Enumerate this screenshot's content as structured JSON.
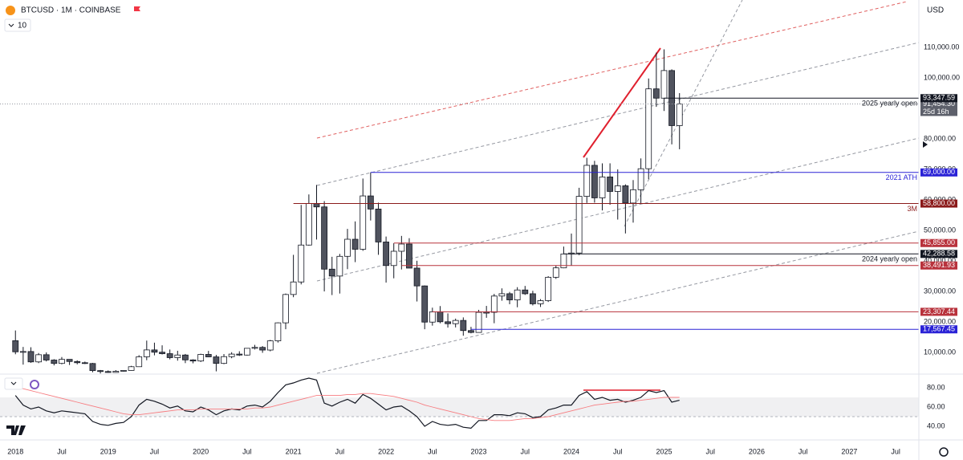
{
  "header": {
    "symbol": "BTCUSD · 1M · COINBASE",
    "interval_count": "10",
    "currency": "USD"
  },
  "chart_data": [
    {
      "type": "candlestick",
      "x": [
        "2018-01",
        "2018-02",
        "2018-03",
        "2018-04",
        "2018-05",
        "2018-06",
        "2018-07",
        "2018-08",
        "2018-09",
        "2018-10",
        "2018-11",
        "2018-12",
        "2019-01",
        "2019-02",
        "2019-03",
        "2019-04",
        "2019-05",
        "2019-06",
        "2019-07",
        "2019-08",
        "2019-09",
        "2019-10",
        "2019-11",
        "2019-12",
        "2020-01",
        "2020-02",
        "2020-03",
        "2020-04",
        "2020-05",
        "2020-06",
        "2020-07",
        "2020-08",
        "2020-09",
        "2020-10",
        "2020-11",
        "2020-12",
        "2021-01",
        "2021-02",
        "2021-03",
        "2021-04",
        "2021-05",
        "2021-06",
        "2021-07",
        "2021-08",
        "2021-09",
        "2021-10",
        "2021-11",
        "2021-12",
        "2022-01",
        "2022-02",
        "2022-03",
        "2022-04",
        "2022-05",
        "2022-06",
        "2022-07",
        "2022-08",
        "2022-09",
        "2022-10",
        "2022-11",
        "2022-12",
        "2023-01",
        "2023-02",
        "2023-03",
        "2023-04",
        "2023-05",
        "2023-06",
        "2023-07",
        "2023-08",
        "2023-09",
        "2023-10",
        "2023-11",
        "2023-12",
        "2024-01",
        "2024-02",
        "2024-03",
        "2024-04",
        "2024-05",
        "2024-06",
        "2024-07",
        "2024-08",
        "2024-09",
        "2024-10",
        "2024-11",
        "2024-12",
        "2025-01",
        "2025-02",
        "2025-03"
      ],
      "open": [
        13850,
        10200,
        10300,
        6900,
        9250,
        7500,
        6400,
        7730,
        7030,
        6630,
        6370,
        4040,
        3740,
        3440,
        3820,
        4100,
        5320,
        8560,
        10820,
        10080,
        9590,
        8290,
        9150,
        7550,
        7190,
        9350,
        8540,
        6410,
        8620,
        9450,
        9140,
        11350,
        11650,
        10780,
        13790,
        19700,
        28990,
        33100,
        45200,
        58800,
        57700,
        37300,
        35040,
        41500,
        47100,
        43820,
        61300,
        57000,
        46200,
        38480,
        43160,
        45530,
        37640,
        31800,
        19940,
        23300,
        20050,
        19420,
        20490,
        17170,
        16550,
        23140,
        23150,
        28480,
        29240,
        27220,
        30470,
        29230,
        25940,
        26970,
        34640,
        37720,
        42280,
        42580,
        61160,
        71330,
        60670,
        67520,
        62770,
        64620,
        58970,
        63330,
        70220,
        96400,
        93350,
        102400,
        84350
      ],
      "high": [
        17200,
        11800,
        11700,
        9800,
        10000,
        7780,
        8500,
        7760,
        7400,
        7000,
        6560,
        4240,
        4100,
        4200,
        4120,
        5600,
        9100,
        13880,
        13200,
        12330,
        10950,
        10540,
        9500,
        7750,
        9580,
        10500,
        9200,
        9470,
        10070,
        10380,
        11450,
        12480,
        12080,
        14100,
        19860,
        29300,
        41990,
        58350,
        61790,
        64900,
        59600,
        41350,
        42300,
        50500,
        52950,
        67000,
        69000,
        59100,
        47990,
        45800,
        48200,
        47450,
        40050,
        31950,
        24670,
        25200,
        22800,
        21080,
        21480,
        18390,
        23960,
        25250,
        29200,
        31000,
        29830,
        31390,
        31800,
        30200,
        27480,
        35000,
        38450,
        44700,
        48970,
        63970,
        73800,
        72800,
        71980,
        71990,
        70000,
        65100,
        66500,
        73600,
        99800,
        108300,
        109350,
        102800,
        95000
      ],
      "low": [
        9400,
        6000,
        6600,
        6500,
        7050,
        5750,
        6100,
        5880,
        6100,
        6200,
        3500,
        3100,
        3350,
        3380,
        3700,
        4050,
        5300,
        7450,
        9050,
        9330,
        7730,
        7300,
        6500,
        6430,
        6850,
        8450,
        3800,
        6150,
        8100,
        8850,
        8980,
        10980,
        9880,
        10370,
        13240,
        17600,
        28100,
        32300,
        45000,
        47000,
        30000,
        28800,
        29300,
        37300,
        39600,
        43300,
        53250,
        42000,
        32900,
        34300,
        37200,
        37700,
        26700,
        17600,
        18780,
        19550,
        18150,
        18200,
        15480,
        16260,
        16500,
        21350,
        19570,
        26950,
        25800,
        24800,
        28860,
        25400,
        24900,
        26540,
        34100,
        37600,
        38550,
        41880,
        59000,
        59100,
        56550,
        58400,
        53550,
        49000,
        52550,
        58900,
        66800,
        90500,
        89150,
        78200,
        76600
      ],
      "close": [
        10200,
        10300,
        6900,
        9250,
        7500,
        6400,
        7730,
        7030,
        6630,
        6370,
        4040,
        3740,
        3440,
        3820,
        4100,
        5320,
        8560,
        10820,
        10080,
        9590,
        8290,
        9150,
        7550,
        7190,
        9350,
        8540,
        6410,
        8620,
        9450,
        9140,
        11350,
        11650,
        10780,
        13790,
        19700,
        28990,
        33100,
        45200,
        58800,
        57700,
        37300,
        35040,
        41500,
        47100,
        43820,
        61300,
        57000,
        46200,
        38480,
        43160,
        45530,
        37640,
        31800,
        19940,
        23300,
        20050,
        19420,
        20490,
        17170,
        16550,
        23140,
        23150,
        28480,
        29240,
        27220,
        30470,
        29230,
        25940,
        26970,
        34640,
        37720,
        42280,
        42580,
        61160,
        71330,
        60670,
        67520,
        62770,
        64620,
        58970,
        63330,
        70220,
        96400,
        93350,
        102400,
        84350,
        91454.3
      ],
      "up_color": "#ffffff",
      "down_color": "#50535e",
      "wick_color": "#131722",
      "xlim": [
        "2017-11",
        "2027-10"
      ],
      "xticks": [
        {
          "value": "2018-01",
          "label": "2018"
        },
        {
          "value": "2018-07",
          "label": "Jul"
        },
        {
          "value": "2019-01",
          "label": "2019"
        },
        {
          "value": "2019-07",
          "label": "Jul"
        },
        {
          "value": "2020-01",
          "label": "2020"
        },
        {
          "value": "2020-07",
          "label": "Jul"
        },
        {
          "value": "2021-01",
          "label": "2021"
        },
        {
          "value": "2021-07",
          "label": "Jul"
        },
        {
          "value": "2022-01",
          "label": "2022"
        },
        {
          "value": "2022-07",
          "label": "Jul"
        },
        {
          "value": "2023-01",
          "label": "2023"
        },
        {
          "value": "2023-07",
          "label": "Jul"
        },
        {
          "value": "2024-01",
          "label": "2024"
        },
        {
          "value": "2024-07",
          "label": "Jul"
        },
        {
          "value": "2025-01",
          "label": "2025"
        },
        {
          "value": "2025-07",
          "label": "Jul"
        },
        {
          "value": "2026-01",
          "label": "2026"
        },
        {
          "value": "2026-07",
          "label": "Jul"
        },
        {
          "value": "2027-01",
          "label": "2027"
        },
        {
          "value": "2027-07",
          "label": "Jul"
        }
      ],
      "ylim": [
        3158,
        125526
      ],
      "yticks": [
        {
          "value": 10000,
          "label": "10,000.00"
        },
        {
          "value": 20000,
          "label": "20,000.00"
        },
        {
          "value": 30000,
          "label": "30,000.00"
        },
        {
          "value": 40000,
          "label": "40,000.00"
        },
        {
          "value": 50000,
          "label": "50,000.00"
        },
        {
          "value": 60000,
          "label": "60,000.00"
        },
        {
          "value": 70000,
          "label": "70,000.00"
        },
        {
          "value": 80000,
          "label": "80,000.00"
        },
        {
          "value": 100000,
          "label": "100,000.00"
        },
        {
          "value": 110000,
          "label": "110,000.00"
        }
      ],
      "grid": false,
      "last_price": {
        "price": {
          "value": 91454.3,
          "label": "91,454.30"
        },
        "countdown": "25d 16h",
        "color": "#5d606b"
      },
      "levels": [
        {
          "price": {
            "value": 93347.59,
            "label": "93,347.59"
          },
          "start": "2025-01",
          "color": "#131722",
          "text": "2025 yearly open"
        },
        {
          "price": {
            "value": 69000,
            "label": "69,000.00"
          },
          "start": "2021-11",
          "color": "#2a22d6",
          "text": "2021 ATH"
        },
        {
          "price": {
            "value": 58800,
            "label": "58,800.00"
          },
          "start": "2021-01",
          "color": "#8b1a1a",
          "text": "3M"
        },
        {
          "price": {
            "value": 45855,
            "label": "45,855.00"
          },
          "start": "2022-02",
          "color": "#b8323c"
        },
        {
          "price": {
            "value": 42288.58,
            "label": "42,288.58"
          },
          "start": "2023-12",
          "color": "#131722",
          "text": "2024 yearly open"
        },
        {
          "price": {
            "value": 38491.93,
            "label": "38,491.93"
          },
          "start": "2022-03",
          "color": "#b8323c"
        },
        {
          "price": {
            "value": 23307.44,
            "label": "23,307.44"
          },
          "start": "2022-07",
          "color": "#b8323c"
        },
        {
          "price": {
            "value": 17567.45,
            "label": "17,567.45"
          },
          "start": "2022-12",
          "color": "#2a22d6"
        }
      ]
    },
    {
      "type": "line",
      "x": [
        "2018-01",
        "2018-02",
        "2018-03",
        "2018-04",
        "2018-05",
        "2018-06",
        "2018-07",
        "2018-08",
        "2018-09",
        "2018-10",
        "2018-11",
        "2018-12",
        "2019-01",
        "2019-02",
        "2019-03",
        "2019-04",
        "2019-05",
        "2019-06",
        "2019-07",
        "2019-08",
        "2019-09",
        "2019-10",
        "2019-11",
        "2019-12",
        "2020-01",
        "2020-02",
        "2020-03",
        "2020-04",
        "2020-05",
        "2020-06",
        "2020-07",
        "2020-08",
        "2020-09",
        "2020-10",
        "2020-11",
        "2020-12",
        "2021-01",
        "2021-02",
        "2021-03",
        "2021-04",
        "2021-05",
        "2021-06",
        "2021-07",
        "2021-08",
        "2021-09",
        "2021-10",
        "2021-11",
        "2021-12",
        "2022-01",
        "2022-02",
        "2022-03",
        "2022-04",
        "2022-05",
        "2022-06",
        "2022-07",
        "2022-08",
        "2022-09",
        "2022-10",
        "2022-11",
        "2022-12",
        "2023-01",
        "2023-02",
        "2023-03",
        "2023-04",
        "2023-05",
        "2023-06",
        "2023-07",
        "2023-08",
        "2023-09",
        "2023-10",
        "2023-11",
        "2023-12",
        "2024-01",
        "2024-02",
        "2024-03",
        "2024-04",
        "2024-05",
        "2024-06",
        "2024-07",
        "2024-08",
        "2024-09",
        "2024-10",
        "2024-11",
        "2024-12",
        "2025-01",
        "2025-02",
        "2025-03"
      ],
      "series": [
        {
          "color": "#131722",
          "values": [
            72,
            62,
            58,
            60,
            56,
            54,
            56,
            55,
            54,
            53,
            45,
            42,
            41,
            43,
            44,
            50,
            62,
            68,
            66,
            63,
            59,
            61,
            56,
            55,
            60,
            57,
            52,
            56,
            58,
            57,
            61,
            62,
            60,
            66,
            75,
            83,
            85,
            88,
            90,
            88,
            64,
            61,
            65,
            68,
            64,
            73,
            69,
            63,
            57,
            60,
            61,
            56,
            50,
            40,
            45,
            42,
            41,
            42,
            39,
            38,
            46,
            46,
            52,
            52,
            51,
            54,
            53,
            49,
            50,
            57,
            59,
            62,
            62,
            72,
            76,
            68,
            70,
            67,
            68,
            65,
            67,
            70,
            77,
            75,
            77,
            65,
            67
          ]
        },
        {
          "color": "#f77c80",
          "values": [
            80,
            79,
            77,
            75,
            73,
            71,
            69,
            67,
            65,
            63,
            61,
            59,
            57,
            55,
            53,
            52,
            52,
            53,
            54,
            55,
            56,
            57,
            57,
            57,
            58,
            58,
            58,
            58,
            58,
            58,
            58,
            59,
            59,
            60,
            62,
            64,
            66,
            68,
            70,
            72,
            72,
            72,
            72,
            73,
            73,
            74,
            74,
            73,
            72,
            71,
            69,
            67,
            65,
            62,
            60,
            58,
            56,
            54,
            52,
            50,
            48,
            47,
            46,
            46,
            46,
            47,
            48,
            48,
            49,
            50,
            52,
            54,
            56,
            58,
            60,
            62,
            63,
            64,
            65,
            66,
            66,
            67,
            68,
            69,
            70,
            70,
            70
          ]
        }
      ],
      "xlim": [
        "2017-11",
        "2027-10"
      ],
      "ylim": [
        28.3,
        93.3
      ],
      "yticks": [
        {
          "value": 80,
          "label": "80.00"
        },
        {
          "value": 60,
          "label": "60.00"
        },
        {
          "value": 40,
          "label": "40.00"
        }
      ]
    }
  ]
}
